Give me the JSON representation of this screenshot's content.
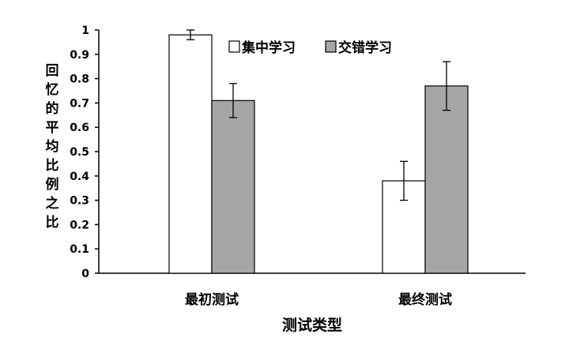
{
  "chart_data": {
    "type": "bar",
    "categories": [
      "最初测试",
      "最终测试"
    ],
    "series": [
      {
        "name": "集中学习",
        "values": [
          0.98,
          0.38
        ],
        "errors": [
          0.02,
          0.08
        ],
        "color": "#ffffff"
      },
      {
        "name": "交错学习",
        "values": [
          0.71,
          0.77
        ],
        "errors": [
          0.07,
          0.1
        ],
        "color": "#a6a6a6"
      }
    ],
    "xlabel": "测试类型",
    "ylabel": "回忆的平均比例之比",
    "ylim": [
      0,
      1
    ],
    "yticks": [
      "0",
      "0.1",
      "0.2",
      "0.3",
      "0.4",
      "0.5",
      "0.6",
      "0.7",
      "0.8",
      "0.9",
      "1"
    ],
    "grid": false,
    "legend_position": "top-center"
  }
}
